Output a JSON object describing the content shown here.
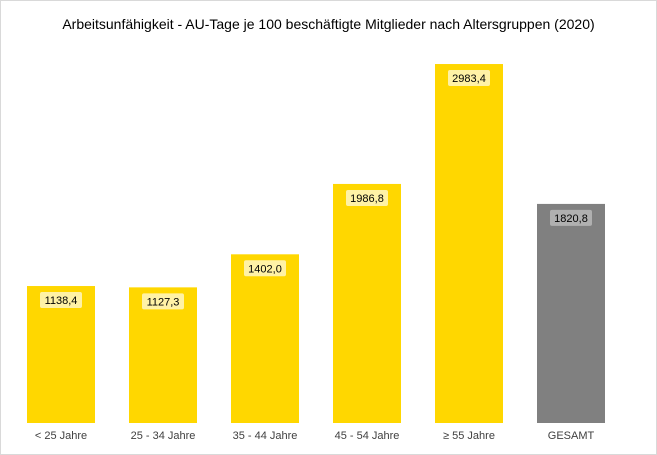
{
  "chart_data": {
    "type": "bar",
    "title": "Arbeitsunfähigkeit - AU-Tage je 100 beschäftigte Mitglieder nach Altersgruppen (2020)",
    "categories": [
      "< 25 Jahre",
      "25 - 34 Jahre",
      "35 - 44 Jahre",
      "45 - 54 Jahre",
      "≥ 55 Jahre",
      "GESAMT"
    ],
    "values": [
      1138.4,
      1127.3,
      1402.0,
      1986.8,
      2983.4,
      1820.8
    ],
    "value_labels": [
      "1138,4",
      "1127,3",
      "1402,0",
      "1986,8",
      "2983,4",
      "1820,8"
    ],
    "colors": [
      "#FFD700",
      "#FFD700",
      "#FFD700",
      "#FFD700",
      "#FFD700",
      "#808080"
    ],
    "label_box_color": "#FFF2A6",
    "label_box_color_total": "#B0B0B0",
    "ylim": [
      0,
      3100
    ],
    "grid": false,
    "legend": "none",
    "xlabel": "",
    "ylabel": ""
  }
}
